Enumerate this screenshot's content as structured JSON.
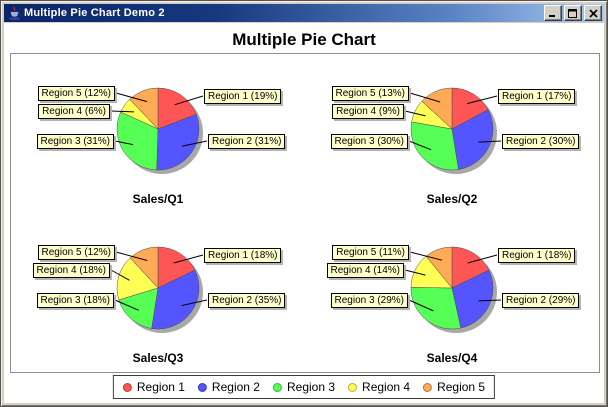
{
  "window": {
    "title": "Multiple Pie Chart Demo 2",
    "icon": "java-coffee-cup",
    "controls": {
      "minimize": "minimize",
      "maximize": "maximize",
      "close": "close"
    }
  },
  "chart_title": "Multiple Pie Chart",
  "colors": {
    "region_palette": [
      "#FF5555",
      "#5555FF",
      "#55FF55",
      "#FFFF55",
      "#FFAA55"
    ],
    "label_background": "#FFFFCC",
    "pie_shadow": "#A8A8A8",
    "titlebar_gradient_start": "#0A246A",
    "titlebar_gradient_end": "#A6CAF0"
  },
  "chart_data": [
    {
      "type": "pie",
      "title": "Sales/Q1",
      "categories": [
        "Region 1",
        "Region 2",
        "Region 3",
        "Region 4",
        "Region 5"
      ],
      "values": [
        19,
        31,
        31,
        6,
        12
      ],
      "slice_labels": [
        "Region 1 (19%)",
        "Region 2 (31%)",
        "Region 3 (31%)",
        "Region 4 (6%)",
        "Region 5 (12%)"
      ]
    },
    {
      "type": "pie",
      "title": "Sales/Q2",
      "categories": [
        "Region 1",
        "Region 2",
        "Region 3",
        "Region 4",
        "Region 5"
      ],
      "values": [
        17,
        30,
        30,
        9,
        13
      ],
      "slice_labels": [
        "Region 1 (17%)",
        "Region 2 (30%)",
        "Region 3 (30%)",
        "Region 4 (9%)",
        "Region 5 (13%)"
      ]
    },
    {
      "type": "pie",
      "title": "Sales/Q3",
      "categories": [
        "Region 1",
        "Region 2",
        "Region 3",
        "Region 4",
        "Region 5"
      ],
      "values": [
        18,
        35,
        18,
        18,
        12
      ],
      "slice_labels": [
        "Region 1 (18%)",
        "Region 2 (35%)",
        "Region 3 (18%)",
        "Region 4 (18%)",
        "Region 5 (12%)"
      ]
    },
    {
      "type": "pie",
      "title": "Sales/Q4",
      "categories": [
        "Region 1",
        "Region 2",
        "Region 3",
        "Region 4",
        "Region 5"
      ],
      "values": [
        18,
        29,
        29,
        14,
        11
      ],
      "slice_labels": [
        "Region 1 (18%)",
        "Region 2 (29%)",
        "Region 3 (29%)",
        "Region 4 (14%)",
        "Region 5 (11%)"
      ]
    }
  ],
  "legend": {
    "items": [
      {
        "label": "Region 1",
        "color": "#FF5555"
      },
      {
        "label": "Region 2",
        "color": "#5555FF"
      },
      {
        "label": "Region 3",
        "color": "#55FF55"
      },
      {
        "label": "Region 4",
        "color": "#FFFF55"
      },
      {
        "label": "Region 5",
        "color": "#FFAA55"
      }
    ]
  }
}
